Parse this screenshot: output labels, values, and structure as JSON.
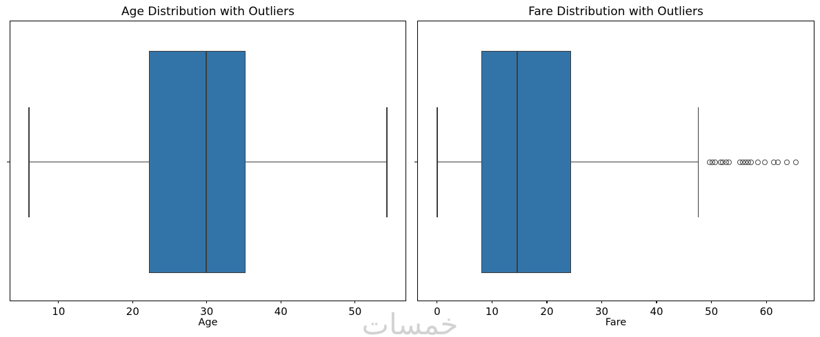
{
  "watermark": {
    "text": "خمسات"
  },
  "chart_data": [
    {
      "type": "boxplot",
      "title": "Age Distribution with Outliers",
      "xlabel": "Age",
      "orientation": "horizontal",
      "xlim": [
        3.5,
        57.0
      ],
      "xticks": [
        10,
        20,
        30,
        40,
        50
      ],
      "grid": false,
      "stats": {
        "whisker_low": 6.0,
        "q1": 22.2,
        "median": 29.9,
        "q3": 35.2,
        "whisker_high": 54.3
      },
      "outliers": [],
      "box_color": "#3274a8",
      "line_color": "#3d3d3d"
    },
    {
      "type": "boxplot",
      "title": "Fare Distribution with Outliers",
      "xlabel": "Fare",
      "orientation": "horizontal",
      "xlim": [
        -3.5,
        68.9
      ],
      "xticks": [
        0,
        10,
        20,
        30,
        40,
        50,
        60
      ],
      "grid": false,
      "stats": {
        "whisker_low": 0.0,
        "q1": 8.05,
        "median": 14.6,
        "q3": 24.4,
        "whisker_high": 47.6
      },
      "outliers": [
        49.7,
        50.2,
        50.7,
        51.7,
        52.1,
        52.7,
        53.2,
        55.2,
        55.7,
        56.2,
        56.7,
        57.2,
        58.5,
        59.7,
        61.3,
        62.1,
        63.7,
        65.4
      ],
      "box_color": "#3274a8",
      "line_color": "#3d3d3d"
    }
  ]
}
